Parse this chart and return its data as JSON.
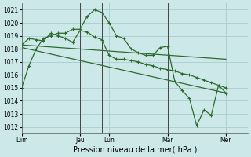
{
  "xlabel": "Pression niveau de la mer( hPa )",
  "bg_color": "#cce8e8",
  "grid_color": "#aacccc",
  "line_color": "#2d6b2d",
  "ylim": [
    1011.5,
    1021.5
  ],
  "yticks": [
    1012,
    1013,
    1014,
    1015,
    1016,
    1017,
    1018,
    1019,
    1020,
    1021
  ],
  "day_labels": [
    "Dim",
    "Jeu",
    "Lun",
    "Mar",
    "Mer"
  ],
  "day_positions": [
    0,
    0.4,
    0.6,
    1.0,
    1.4
  ],
  "xlim": [
    0,
    1.55
  ],
  "vline_positions": [
    0.4,
    0.55,
    1.0
  ],
  "line1_x": [
    0.0,
    0.05,
    0.1,
    0.15,
    0.2,
    0.25,
    0.3,
    0.35,
    0.4,
    0.45,
    0.5,
    0.55,
    0.6,
    0.65,
    0.7,
    0.75,
    0.8,
    0.85,
    0.9,
    0.95,
    1.0,
    1.05,
    1.1,
    1.15,
    1.2,
    1.25,
    1.3,
    1.35,
    1.4
  ],
  "line1_y": [
    1015.0,
    1016.7,
    1018.0,
    1018.8,
    1019.0,
    1019.2,
    1019.2,
    1019.5,
    1019.5,
    1020.5,
    1021.0,
    1020.8,
    1020.0,
    1019.0,
    1018.8,
    1018.0,
    1017.7,
    1017.5,
    1017.5,
    1018.1,
    1018.2,
    1015.5,
    1014.8,
    1014.2,
    1012.1,
    1013.3,
    1012.9,
    1015.2,
    1014.6
  ],
  "line2_x": [
    0.0,
    0.05,
    0.1,
    0.15,
    0.2,
    0.25,
    0.3,
    0.35,
    0.4,
    0.45,
    0.5,
    0.55,
    0.6,
    0.65,
    0.7,
    0.75,
    0.8,
    0.85,
    0.9,
    0.95,
    1.0,
    1.05,
    1.1,
    1.15,
    1.2,
    1.25,
    1.3,
    1.35,
    1.4
  ],
  "line2_y": [
    1018.3,
    1018.8,
    1018.7,
    1018.6,
    1019.2,
    1019.0,
    1018.8,
    1018.5,
    1019.4,
    1019.3,
    1018.9,
    1018.7,
    1017.5,
    1017.2,
    1017.2,
    1017.1,
    1017.0,
    1016.8,
    1016.7,
    1016.5,
    1016.4,
    1016.3,
    1016.1,
    1016.0,
    1015.8,
    1015.6,
    1015.4,
    1015.2,
    1015.0
  ],
  "line3_x": [
    0.0,
    1.4
  ],
  "line3_y": [
    1018.3,
    1017.2
  ],
  "line4_x": [
    0.0,
    1.4
  ],
  "line4_y": [
    1018.1,
    1014.6
  ]
}
